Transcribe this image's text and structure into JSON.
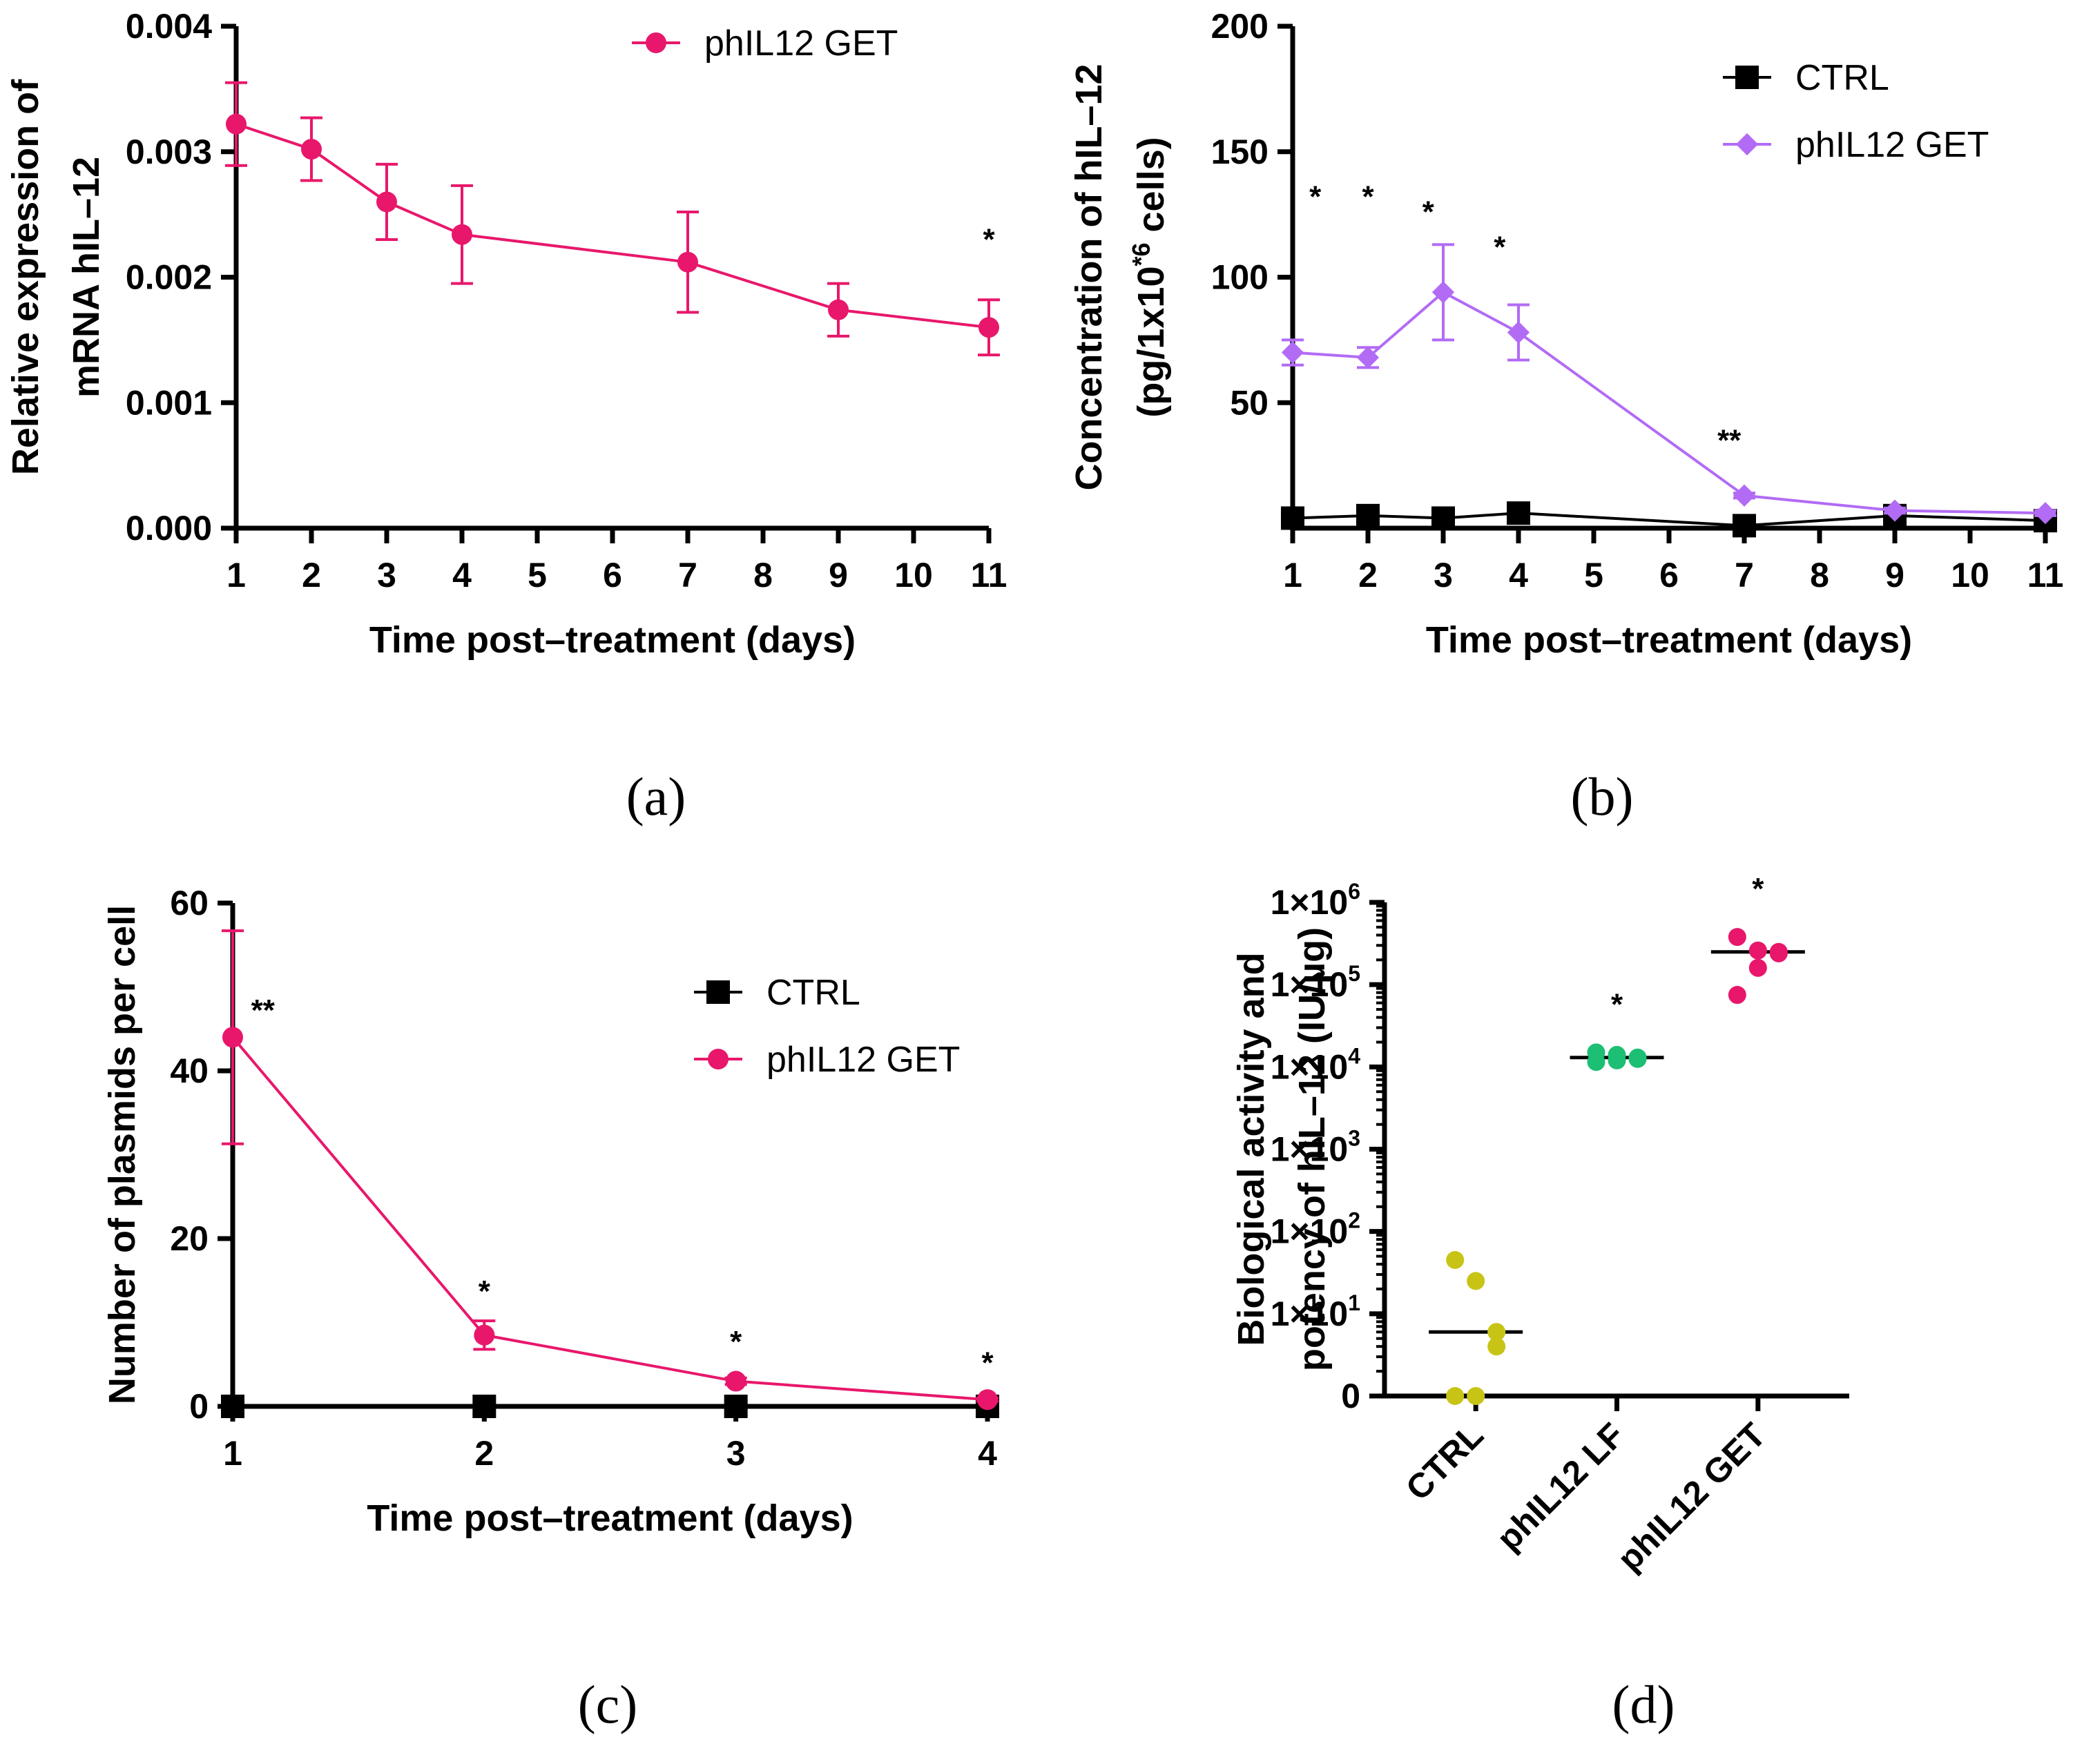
{
  "chart_data": [
    {
      "panel_label": "(a)",
      "type": "line",
      "xlabel": "Time post–treatment (days)",
      "ylabel_lines": [
        "Relative expression of",
        "mRNA hIL–12"
      ],
      "xlim": [
        1,
        11
      ],
      "ylim": [
        0,
        0.004
      ],
      "xticks": [
        "1",
        "2",
        "3",
        "4",
        "5",
        "6",
        "7",
        "8",
        "9",
        "10",
        "11"
      ],
      "yticks": [
        "0.000",
        "0.001",
        "0.002",
        "0.003",
        "0.004"
      ],
      "legend_position": "top-right",
      "series": [
        {
          "name": "phIL12 GET",
          "color": "#e8176b",
          "marker": "circle",
          "x": [
            1,
            2,
            3,
            4,
            7,
            9,
            11
          ],
          "y": [
            0.00322,
            0.00302,
            0.0026,
            0.00234,
            0.00212,
            0.00174,
            0.0016
          ],
          "err": [
            0.00033,
            0.00025,
            0.0003,
            0.00039,
            0.0004,
            0.00021,
            0.00022
          ]
        }
      ],
      "annotations": [
        {
          "x": 11,
          "y": 0.00222,
          "text": "*"
        }
      ]
    },
    {
      "panel_label": "(b)",
      "type": "line",
      "xlabel": "Time post–treatment (days)",
      "ylabel_lines": [
        "Concentration of hIL–12",
        "(pg/1x10*6 cells)"
      ],
      "ylabel_parts": [
        "(pg/1x10",
        "*6",
        " cells)"
      ],
      "xlim": [
        1,
        11
      ],
      "ylim": [
        0,
        200
      ],
      "xticks": [
        "1",
        "2",
        "3",
        "4",
        "5",
        "6",
        "7",
        "8",
        "9",
        "10",
        "11"
      ],
      "yticks": [
        "50",
        "100",
        "150",
        "200"
      ],
      "legend_position": "top-right",
      "series": [
        {
          "name": "CTRL",
          "color": "#000000",
          "marker": "square",
          "x": [
            1,
            2,
            3,
            4,
            7,
            9,
            11
          ],
          "y": [
            4,
            5,
            4,
            6,
            1,
            5,
            3
          ],
          "err": [
            0,
            0,
            0,
            0,
            0,
            0,
            0
          ]
        },
        {
          "name": "phIL12 GET",
          "color": "#b26bf5",
          "marker": "diamond",
          "x": [
            1,
            2,
            3,
            4,
            7,
            9,
            11
          ],
          "y": [
            70,
            68,
            94,
            78,
            13,
            7,
            6
          ],
          "err": [
            5,
            4,
            19,
            11,
            1,
            1,
            1
          ]
        }
      ],
      "annotations": [
        {
          "x": 1.3,
          "y": 128,
          "text": "*"
        },
        {
          "x": 2,
          "y": 128,
          "text": "*"
        },
        {
          "x": 2.8,
          "y": 122,
          "text": "*"
        },
        {
          "x": 3.75,
          "y": 108,
          "text": "*"
        },
        {
          "x": 6.8,
          "y": 31,
          "text": "**"
        }
      ]
    },
    {
      "panel_label": "(c)",
      "type": "line",
      "xlabel": "Time post–treatment (days)",
      "ylabel_lines": [
        "Number of plasmids per cell"
      ],
      "xlim": [
        1,
        4
      ],
      "ylim": [
        0,
        60
      ],
      "xticks": [
        "1",
        "2",
        "3",
        "4"
      ],
      "yticks": [
        "0",
        "20",
        "40",
        "60"
      ],
      "legend_position": "center-right",
      "series": [
        {
          "name": "CTRL",
          "color": "#000000",
          "marker": "square",
          "x": [
            1,
            2,
            3,
            4
          ],
          "y": [
            0,
            0,
            0,
            0
          ],
          "err": [
            0,
            0,
            0,
            0
          ]
        },
        {
          "name": "phIL12 GET",
          "color": "#e8176b",
          "marker": "circle",
          "x": [
            1,
            2,
            3,
            4
          ],
          "y": [
            44,
            8.5,
            3,
            0.8
          ],
          "err": [
            12.7,
            1.7,
            0.4,
            0.2
          ]
        }
      ],
      "annotations": [
        {
          "x": 1.12,
          "y": 46,
          "text": "**"
        },
        {
          "x": 2,
          "y": 12.5,
          "text": "*"
        },
        {
          "x": 3,
          "y": 6.5,
          "text": "*"
        },
        {
          "x": 4,
          "y": 4,
          "text": "*"
        }
      ]
    },
    {
      "panel_label": "(d)",
      "type": "scatter",
      "xlabel": "",
      "ylabel_lines": [
        "Biological activity and",
        "potency of hIL–12 (IU/µg)"
      ],
      "yscale": "log",
      "ylim_log10": [
        0,
        6
      ],
      "yticks": [
        {
          "base": "0",
          "exp": ""
        },
        {
          "base": "1×10",
          "exp": "1"
        },
        {
          "base": "1×10",
          "exp": "2"
        },
        {
          "base": "1×10",
          "exp": "3"
        },
        {
          "base": "1×10",
          "exp": "4"
        },
        {
          "base": "1×10",
          "exp": "5"
        },
        {
          "base": "1×10",
          "exp": "6"
        }
      ],
      "categories": [
        "CTRL",
        "phIL12 LF",
        "phIL12 GET"
      ],
      "series": [
        {
          "name": "CTRL",
          "color": "#c8c416",
          "values": [
            45,
            25,
            6,
            4,
            1,
            1
          ],
          "median": 6
        },
        {
          "name": "phIL12 LF",
          "color": "#1cbf73",
          "values": [
            15000,
            14000,
            13000,
            12500,
            12000,
            11500
          ],
          "median": 13000
        },
        {
          "name": "phIL12 GET",
          "color": "#e8176b",
          "values": [
            380000,
            260000,
            250000,
            240000,
            160000,
            75000
          ],
          "median": 250000
        }
      ],
      "annotations": [
        {
          "category": "phIL12 LF",
          "text": "*"
        },
        {
          "category": "phIL12 GET",
          "text": "*"
        }
      ]
    }
  ]
}
